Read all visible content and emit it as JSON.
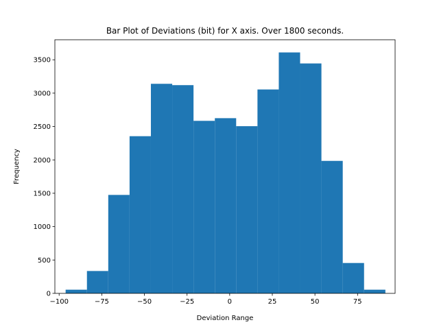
{
  "chart_data": {
    "type": "bar",
    "title": "Bar Plot of Deviations (bit) for X axis. Over 1800 seconds.",
    "xlabel": "Deviation Range",
    "ylabel": "Frequency",
    "xlim": [
      -102.5,
      97.0
    ],
    "ylim": [
      0,
      3800
    ],
    "xticks": [
      -100,
      -75,
      -50,
      -25,
      0,
      25,
      50,
      75
    ],
    "yticks": [
      0,
      500,
      1000,
      1500,
      2000,
      2500,
      3000,
      3500
    ],
    "grid": false,
    "legend": "none",
    "color": "#1f77b4",
    "bins": [
      {
        "x0": -96.2,
        "x1": -83.7,
        "value": 55
      },
      {
        "x0": -83.7,
        "x1": -71.2,
        "value": 335
      },
      {
        "x0": -71.2,
        "x1": -58.7,
        "value": 1475
      },
      {
        "x0": -58.7,
        "x1": -46.2,
        "value": 2355
      },
      {
        "x0": -46.2,
        "x1": -33.7,
        "value": 3140
      },
      {
        "x0": -33.7,
        "x1": -21.2,
        "value": 3120
      },
      {
        "x0": -21.2,
        "x1": -8.7,
        "value": 2585
      },
      {
        "x0": -8.7,
        "x1": 3.8,
        "value": 2625
      },
      {
        "x0": 3.8,
        "x1": 16.3,
        "value": 2505
      },
      {
        "x0": 16.3,
        "x1": 28.8,
        "value": 3055
      },
      {
        "x0": 28.8,
        "x1": 41.3,
        "value": 3610
      },
      {
        "x0": 41.3,
        "x1": 53.8,
        "value": 3445
      },
      {
        "x0": 53.8,
        "x1": 66.3,
        "value": 1985
      },
      {
        "x0": 66.3,
        "x1": 78.8,
        "value": 455
      },
      {
        "x0": 78.8,
        "x1": 91.3,
        "value": 55
      }
    ]
  }
}
